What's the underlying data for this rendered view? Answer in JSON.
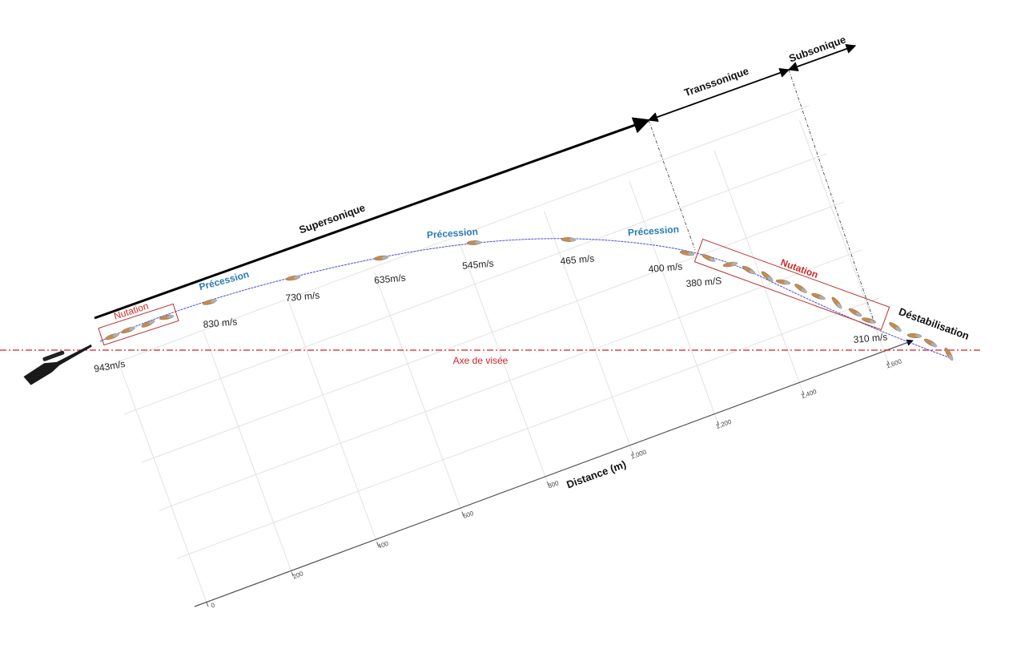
{
  "regimes": [
    "Supersonique",
    "Transsonique",
    "Subsonique"
  ],
  "phases": {
    "nutation_start": "Nutation",
    "precession": [
      "Précession",
      "Précession",
      "Précession"
    ],
    "nutation_end": "Nutation",
    "destabilization": "Déstabilisation"
  },
  "velocities": [
    "943m/s",
    "830 m/s",
    "730 m/s",
    "635m/s",
    "545m/s",
    "465 m/s",
    "400 m/s",
    "380 m/S",
    "310 m/s"
  ],
  "sight_line": "Axe de visée",
  "axis": {
    "title": "Distance (m)",
    "ticks": [
      "0",
      "200",
      "400",
      "600",
      "800",
      "1,000",
      "1,200",
      "1,400",
      "1,600"
    ]
  }
}
